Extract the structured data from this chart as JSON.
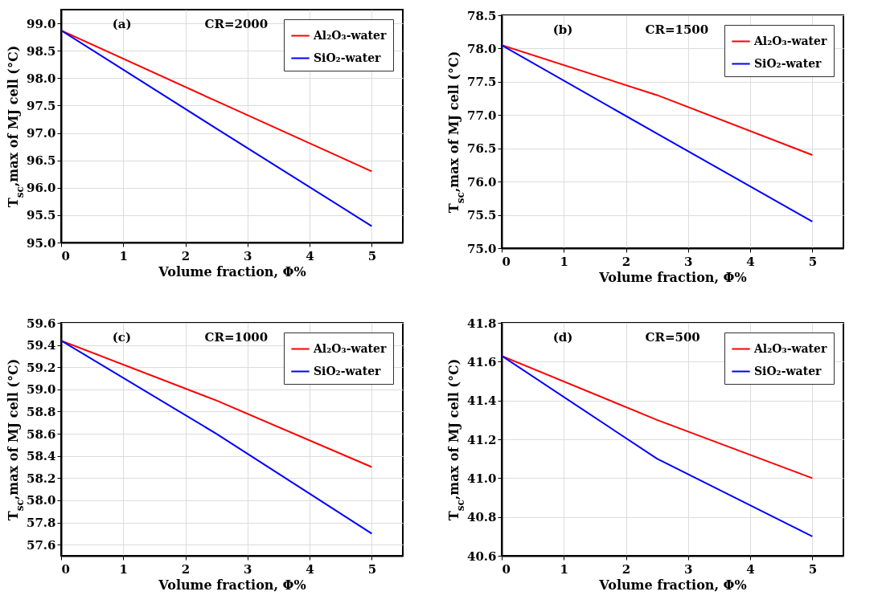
{
  "chart_data": [
    {
      "type": "line",
      "xlabel": "Volume fraction, Φ%",
      "ylabel": "T$_{sc}$,max of MJ cell (°C)",
      "annotations": [
        "(a)",
        "CR=2000"
      ],
      "x": [
        0,
        2.5,
        5
      ],
      "series": [
        {
          "name": "Al₂O₃-water",
          "color": "#ff0000",
          "values": [
            98.87,
            97.58,
            96.3
          ]
        },
        {
          "name": "SiO₂-water",
          "color": "#0000ff",
          "values": [
            98.87,
            97.08,
            95.3
          ]
        }
      ],
      "xlim": [
        0,
        5.5
      ],
      "xticks": [
        0,
        1,
        2,
        3,
        4,
        5
      ],
      "ylim": [
        95,
        99.25
      ],
      "yticks": [
        {
          "value": 95,
          "label": "95.0"
        },
        95.5,
        {
          "value": 96,
          "label": "96.0"
        },
        96.5,
        {
          "value": 97,
          "label": "97.0"
        },
        97.5,
        {
          "value": 98,
          "label": "98.0"
        },
        98.5,
        {
          "value": 99,
          "label": "99.0"
        }
      ],
      "grid": true,
      "legend": "top right"
    },
    {
      "type": "line",
      "xlabel": "Volume fraction, Φ%",
      "ylabel": "T$_{sc}$,max of MJ cell (°C)",
      "annotations": [
        "(b)",
        "CR=1500"
      ],
      "x": [
        0,
        2.5,
        5
      ],
      "series": [
        {
          "name": "Al₂O₃-water",
          "color": "#ff0000",
          "values": [
            78.05,
            77.3,
            76.4
          ]
        },
        {
          "name": "SiO₂-water",
          "color": "#0000ff",
          "values": [
            78.05,
            76.72,
            75.4
          ]
        }
      ],
      "xlim": [
        0,
        5.5
      ],
      "xticks": [
        0,
        1,
        2,
        3,
        4,
        5
      ],
      "ylim": [
        75,
        78.5
      ],
      "yticks": [
        {
          "value": 75,
          "label": "75.0"
        },
        75.5,
        {
          "value": 76,
          "label": "76.0"
        },
        76.5,
        {
          "value": 77,
          "label": "77.0"
        },
        77.5,
        {
          "value": 78,
          "label": "78.0"
        },
        78.5
      ],
      "grid": true,
      "legend": "top right"
    },
    {
      "type": "line",
      "xlabel": "Volume fraction, Φ%",
      "ylabel": "T$_{sc}$,max of MJ cell (°C)",
      "annotations": [
        "(c)",
        "CR=1000"
      ],
      "x": [
        0,
        2.5,
        5
      ],
      "series": [
        {
          "name": "Al₂O₃-water",
          "color": "#ff0000",
          "values": [
            59.44,
            58.9,
            58.3
          ]
        },
        {
          "name": "SiO₂-water",
          "color": "#0000ff",
          "values": [
            59.44,
            58.6,
            57.7
          ]
        }
      ],
      "xlim": [
        0,
        5.5
      ],
      "xticks": [
        0,
        1,
        2,
        3,
        4,
        5
      ],
      "ylim": [
        57.5,
        59.6
      ],
      "yticks": [
        57.6,
        57.8,
        {
          "value": 58,
          "label": "58.0"
        },
        58.2,
        58.4,
        58.6,
        58.8,
        {
          "value": 59,
          "label": "59.0"
        },
        59.2,
        59.4,
        59.6
      ],
      "grid": true,
      "legend": "top right"
    },
    {
      "type": "line",
      "xlabel": "Volume fraction, Φ%",
      "ylabel": "T$_{sc}$,max of MJ cell (°C)",
      "annotations": [
        "(d)",
        "CR=500"
      ],
      "x": [
        0,
        2.5,
        5
      ],
      "series": [
        {
          "name": "Al₂O₃-water",
          "color": "#ff0000",
          "values": [
            41.63,
            41.3,
            41.0
          ]
        },
        {
          "name": "SiO₂-water",
          "color": "#0000ff",
          "values": [
            41.63,
            41.1,
            40.7
          ]
        }
      ],
      "xlim": [
        0,
        5.5
      ],
      "xticks": [
        0,
        1,
        2,
        3,
        4,
        5
      ],
      "ylim": [
        40.6,
        41.8
      ],
      "yticks": [
        40.6,
        40.8,
        {
          "value": 41,
          "label": "41.0"
        },
        41.2,
        41.4,
        41.6,
        41.8
      ],
      "grid": true,
      "legend": "top right"
    }
  ]
}
